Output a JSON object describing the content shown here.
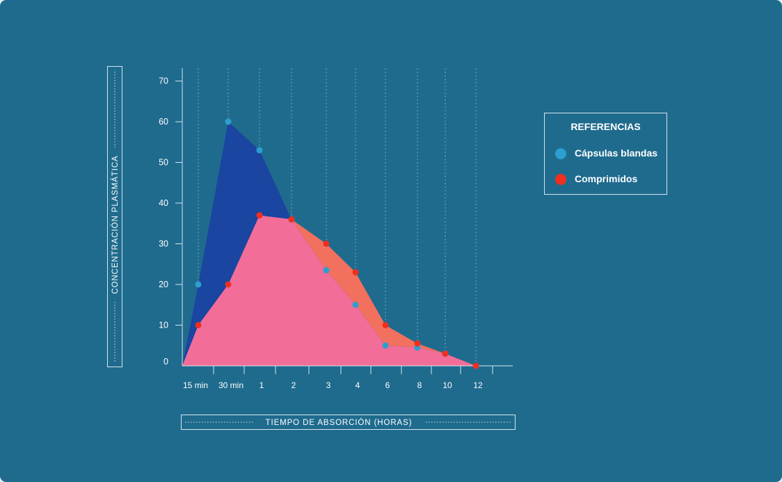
{
  "chart_data": {
    "type": "area",
    "xlabel": "TIEMPO DE ABSORCIÓN (HORAS)",
    "ylabel": "CONCENTRACIÓN PLASMÁTICA",
    "categories": [
      "15 min",
      "30 min",
      "1",
      "2",
      "3",
      "4",
      "6",
      "8",
      "10",
      "12"
    ],
    "ylim": [
      0,
      70
    ],
    "yticks": [
      0,
      10,
      20,
      30,
      40,
      50,
      60,
      70
    ],
    "grid": "vertical dashed lines at each category",
    "legend_title": "REFERENCIAS",
    "legend_position": "right",
    "series": [
      {
        "name": "Cápsulas blandas",
        "color": "#2b9fcf",
        "fill": "#1a45a0",
        "values": [
          20,
          60,
          53,
          36,
          23.5,
          15,
          5,
          4.5,
          3,
          0
        ]
      },
      {
        "name": "Comprimidos",
        "color": "#ef2f1f",
        "fill": "#f2705e",
        "values": [
          10,
          20,
          37,
          36,
          30,
          23,
          10,
          5.5,
          3,
          0
        ]
      }
    ]
  }
}
